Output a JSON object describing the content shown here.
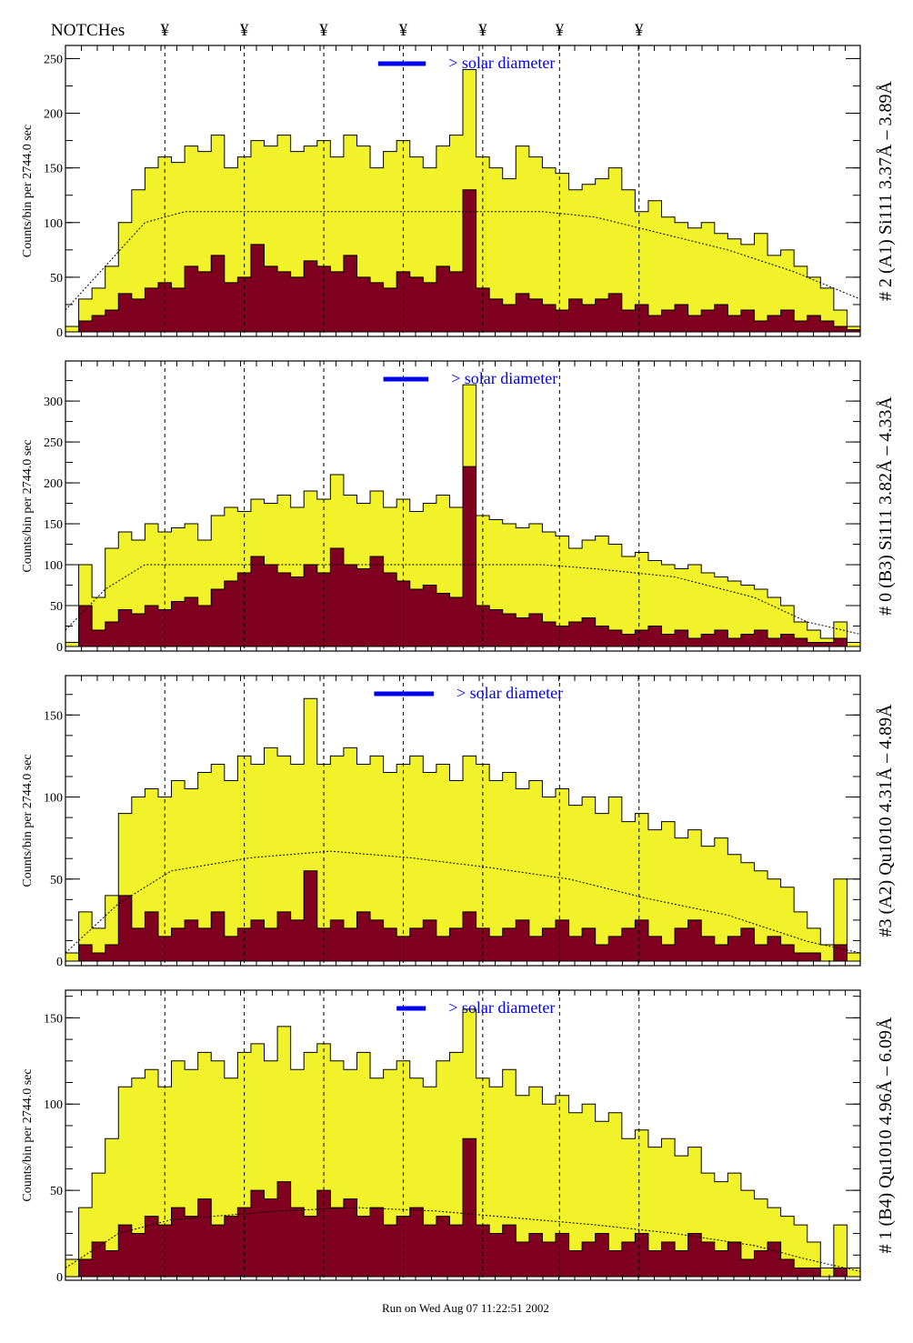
{
  "header": {
    "notches_label": "NOTCHes",
    "notch_symbol": "¥",
    "notch_positions": [
      7.5,
      13.5,
      19.5,
      25.5,
      31.5,
      37.3,
      43.3
    ]
  },
  "footer": "Run on Wed Aug 07 11:22:51 2002",
  "colors": {
    "total": "#f2f22a",
    "background": "#800020",
    "solar": "#0000ee"
  },
  "chart_data": [
    {
      "type": "bar",
      "title": "# 2 (A1) Si111  3.37Å – 3.89Å",
      "ylabel": "Counts/bin per   2744.0 sec",
      "ylim": [
        0,
        262
      ],
      "yticks": [
        0,
        50,
        100,
        150,
        200,
        250
      ],
      "legend": "> solar diameter",
      "solar_bar": [
        23.6,
        27.2
      ],
      "total": [
        5,
        30,
        40,
        60,
        100,
        130,
        150,
        160,
        155,
        170,
        165,
        180,
        150,
        160,
        175,
        170,
        180,
        165,
        170,
        175,
        160,
        180,
        170,
        150,
        165,
        175,
        160,
        150,
        170,
        180,
        240,
        160,
        150,
        140,
        170,
        160,
        150,
        145,
        130,
        135,
        140,
        150,
        130,
        110,
        120,
        105,
        100,
        95,
        100,
        90,
        85,
        80,
        90,
        70,
        75,
        60,
        50,
        40,
        20,
        5
      ],
      "background": [
        0,
        10,
        15,
        20,
        35,
        30,
        40,
        45,
        40,
        60,
        55,
        70,
        45,
        50,
        80,
        60,
        55,
        50,
        65,
        60,
        55,
        70,
        50,
        45,
        40,
        55,
        50,
        45,
        60,
        55,
        130,
        40,
        30,
        25,
        35,
        30,
        25,
        20,
        30,
        25,
        30,
        35,
        20,
        25,
        15,
        20,
        25,
        15,
        20,
        25,
        15,
        20,
        10,
        15,
        20,
        10,
        15,
        10,
        5,
        2
      ],
      "model": [
        [
          0,
          20
        ],
        [
          3,
          60
        ],
        [
          6,
          100
        ],
        [
          9,
          110
        ],
        [
          20,
          110
        ],
        [
          36,
          110
        ],
        [
          40,
          105
        ],
        [
          45,
          90
        ],
        [
          50,
          75
        ],
        [
          55,
          55
        ],
        [
          60,
          30
        ]
      ]
    },
    {
      "type": "bar",
      "title": "# 0 (B3) Si111  3.82Å – 4.33Å",
      "ylabel": "Counts/bin per   2744.0 sec",
      "ylim": [
        0,
        349
      ],
      "yticks": [
        0,
        50,
        100,
        150,
        200,
        250,
        300
      ],
      "legend": "> solar diameter",
      "solar_bar": [
        24.0,
        27.4
      ],
      "total": [
        5,
        100,
        60,
        120,
        140,
        130,
        150,
        140,
        145,
        150,
        130,
        160,
        170,
        165,
        180,
        175,
        185,
        170,
        190,
        180,
        210,
        185,
        175,
        190,
        170,
        180,
        165,
        175,
        185,
        170,
        320,
        160,
        155,
        150,
        145,
        150,
        140,
        135,
        120,
        130,
        135,
        125,
        110,
        115,
        105,
        100,
        95,
        100,
        90,
        85,
        80,
        75,
        70,
        60,
        50,
        30,
        20,
        10,
        30,
        5
      ],
      "background": [
        0,
        50,
        20,
        30,
        45,
        40,
        50,
        45,
        55,
        60,
        50,
        70,
        80,
        90,
        110,
        100,
        90,
        85,
        100,
        90,
        120,
        100,
        95,
        110,
        90,
        80,
        70,
        75,
        65,
        60,
        220,
        50,
        45,
        40,
        35,
        40,
        30,
        25,
        30,
        35,
        25,
        20,
        15,
        20,
        25,
        15,
        20,
        10,
        15,
        20,
        10,
        15,
        20,
        10,
        15,
        10,
        5,
        5,
        10,
        0
      ],
      "model": [
        [
          0,
          20
        ],
        [
          3,
          70
        ],
        [
          6,
          100
        ],
        [
          36,
          100
        ],
        [
          40,
          95
        ],
        [
          46,
          85
        ],
        [
          52,
          60
        ],
        [
          56,
          30
        ],
        [
          60,
          15
        ]
      ]
    },
    {
      "type": "bar",
      "title": "#3 (A2) Qu1010  4.31Å – 4.89Å",
      "ylabel": "Counts/bin per   2744.0 sec",
      "ylim": [
        0,
        174
      ],
      "yticks": [
        0,
        50,
        100,
        150
      ],
      "legend": "> solar diameter",
      "solar_bar": [
        23.3,
        27.8
      ],
      "total": [
        5,
        30,
        20,
        40,
        90,
        100,
        105,
        100,
        110,
        105,
        115,
        120,
        110,
        125,
        120,
        130,
        125,
        120,
        160,
        120,
        125,
        130,
        120,
        125,
        115,
        120,
        125,
        115,
        120,
        110,
        125,
        120,
        110,
        115,
        105,
        110,
        100,
        105,
        95,
        100,
        90,
        100,
        85,
        90,
        80,
        85,
        75,
        80,
        70,
        75,
        65,
        60,
        55,
        50,
        45,
        30,
        20,
        10,
        50,
        5
      ],
      "background": [
        0,
        10,
        5,
        10,
        40,
        20,
        30,
        15,
        20,
        25,
        20,
        30,
        15,
        20,
        25,
        20,
        30,
        25,
        55,
        20,
        25,
        20,
        30,
        25,
        20,
        15,
        20,
        25,
        15,
        20,
        30,
        20,
        15,
        20,
        25,
        15,
        20,
        25,
        15,
        20,
        10,
        15,
        20,
        25,
        15,
        10,
        20,
        25,
        15,
        10,
        15,
        20,
        10,
        15,
        10,
        5,
        5,
        0,
        10,
        0
      ],
      "model": [
        [
          0,
          5
        ],
        [
          4,
          35
        ],
        [
          8,
          55
        ],
        [
          14,
          63
        ],
        [
          20,
          67
        ],
        [
          26,
          63
        ],
        [
          32,
          57
        ],
        [
          38,
          50
        ],
        [
          44,
          38
        ],
        [
          50,
          28
        ],
        [
          56,
          12
        ],
        [
          60,
          5
        ]
      ]
    },
    {
      "type": "bar",
      "title": "# 1 (B4) Qu1010 4.96Å – 6.09Å",
      "ylabel": "Counts/bin per   2744.0 sec",
      "ylim": [
        0,
        166
      ],
      "yticks": [
        0,
        50,
        100,
        150
      ],
      "legend": "> solar diameter",
      "solar_bar": [
        25.0,
        27.2
      ],
      "total": [
        10,
        40,
        60,
        80,
        110,
        115,
        120,
        110,
        125,
        120,
        130,
        125,
        115,
        130,
        135,
        125,
        145,
        120,
        130,
        135,
        125,
        120,
        130,
        115,
        120,
        125,
        115,
        110,
        125,
        130,
        155,
        115,
        110,
        120,
        105,
        110,
        100,
        105,
        95,
        100,
        90,
        95,
        80,
        85,
        75,
        80,
        70,
        75,
        60,
        55,
        60,
        50,
        45,
        40,
        35,
        30,
        20,
        5,
        30,
        5
      ],
      "background": [
        0,
        10,
        20,
        15,
        30,
        25,
        35,
        30,
        40,
        35,
        45,
        30,
        35,
        40,
        50,
        45,
        55,
        40,
        35,
        50,
        40,
        45,
        35,
        40,
        30,
        35,
        40,
        30,
        35,
        30,
        80,
        30,
        25,
        30,
        20,
        25,
        20,
        25,
        15,
        20,
        25,
        15,
        20,
        25,
        15,
        20,
        15,
        25,
        20,
        15,
        20,
        10,
        15,
        20,
        10,
        5,
        5,
        0,
        5,
        0
      ],
      "model": [
        [
          0,
          5
        ],
        [
          4,
          25
        ],
        [
          8,
          33
        ],
        [
          16,
          38
        ],
        [
          22,
          40
        ],
        [
          28,
          38
        ],
        [
          34,
          34
        ],
        [
          40,
          30
        ],
        [
          46,
          25
        ],
        [
          52,
          18
        ],
        [
          56,
          10
        ],
        [
          60,
          3
        ]
      ]
    }
  ]
}
